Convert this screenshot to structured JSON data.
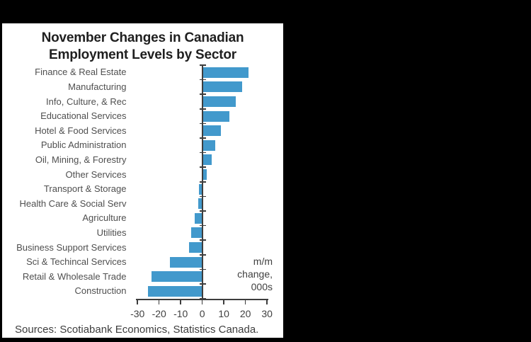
{
  "window": {
    "background_color": "#000000",
    "panel_color": "#ffffff"
  },
  "chart_data": {
    "type": "bar",
    "orientation": "horizontal",
    "title_lines": [
      "November Changes in Canadian",
      "Employment Levels by Sector"
    ],
    "categories": [
      "Finance & Real Estate",
      "Manufacturing",
      "Info, Culture, & Rec",
      "Educational Services",
      "Hotel & Food Services",
      "Public Administration",
      "Oil, Mining, & Forestry",
      "Other Services",
      "Transport & Storage",
      "Health Care & Social Serv",
      "Agriculture",
      "Utilities",
      "Business Support Services",
      "Sci & Techincal Services",
      "Retail & Wholesale Trade",
      "Construction"
    ],
    "values": [
      21.5,
      18.5,
      15.5,
      12.5,
      8.5,
      6,
      4.5,
      2,
      -1.5,
      -2,
      -3.5,
      -5,
      -6,
      -15,
      -23.5,
      -25
    ],
    "xticks": [
      -30,
      -20,
      -10,
      0,
      10,
      20,
      30
    ],
    "xlim": [
      -30,
      30
    ],
    "grid": false,
    "legend": "none",
    "bar_color": "#4299cc",
    "axis_color": "#3d3d3d",
    "text_color": "#4f4f4f",
    "annotation_lines": [
      "m/m",
      "change,",
      "000s"
    ],
    "source_note": "Sources: Scotiabank Economics, Statistics Canada."
  }
}
